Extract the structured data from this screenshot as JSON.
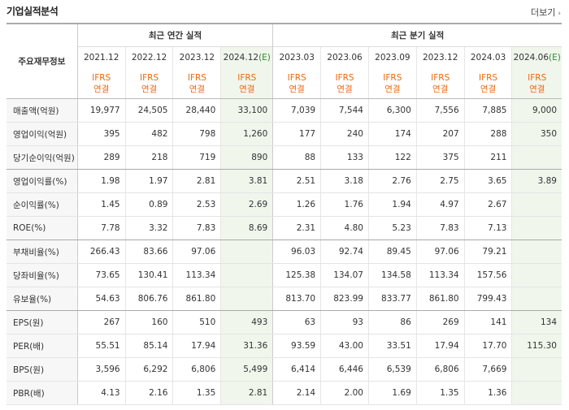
{
  "header": {
    "title": "기업실적분석",
    "more_label": "더보기",
    "more_arrow": "›"
  },
  "table": {
    "metric_header": "주요재무정보",
    "group_annual": "최근 연간 실적",
    "group_quarter": "최근 분기 실적",
    "periods": [
      "2021.12",
      "2022.12",
      "2023.12",
      "2024.12",
      "2023.03",
      "2023.06",
      "2023.09",
      "2023.12",
      "2024.03",
      "2024.06"
    ],
    "estimate_marker": "(E)",
    "basis_line1": "IFRS",
    "basis_line2": "연결",
    "rows": [
      {
        "label": "매출액(억원)",
        "values": [
          "19,977",
          "24,505",
          "28,440",
          "33,100",
          "7,039",
          "7,544",
          "6,300",
          "7,556",
          "7,885",
          "9,000"
        ]
      },
      {
        "label": "영업이익(억원)",
        "values": [
          "395",
          "482",
          "798",
          "1,260",
          "177",
          "240",
          "174",
          "207",
          "288",
          "350"
        ]
      },
      {
        "label": "당기순이익(억원)",
        "values": [
          "289",
          "218",
          "719",
          "890",
          "88",
          "133",
          "122",
          "375",
          "211",
          ""
        ]
      },
      {
        "label": "영업이익률(%)",
        "values": [
          "1.98",
          "1.97",
          "2.81",
          "3.81",
          "2.51",
          "3.18",
          "2.76",
          "2.75",
          "3.65",
          "3.89"
        ]
      },
      {
        "label": "순이익률(%)",
        "values": [
          "1.45",
          "0.89",
          "2.53",
          "2.69",
          "1.26",
          "1.76",
          "1.94",
          "4.97",
          "2.67",
          ""
        ]
      },
      {
        "label": "ROE(%)",
        "values": [
          "7.78",
          "3.32",
          "7.83",
          "8.69",
          "2.31",
          "4.80",
          "5.23",
          "7.83",
          "7.13",
          ""
        ]
      },
      {
        "label": "부채비율(%)",
        "values": [
          "266.43",
          "83.66",
          "97.06",
          "",
          "96.03",
          "92.74",
          "89.45",
          "97.06",
          "79.21",
          ""
        ]
      },
      {
        "label": "당좌비율(%)",
        "values": [
          "73.65",
          "130.41",
          "113.34",
          "",
          "125.38",
          "134.07",
          "134.58",
          "113.34",
          "157.56",
          ""
        ]
      },
      {
        "label": "유보율(%)",
        "values": [
          "54.63",
          "806.76",
          "861.80",
          "",
          "813.70",
          "823.99",
          "833.77",
          "861.80",
          "799.43",
          ""
        ]
      },
      {
        "label": "EPS(원)",
        "values": [
          "267",
          "160",
          "510",
          "493",
          "63",
          "93",
          "86",
          "269",
          "141",
          "134"
        ]
      },
      {
        "label": "PER(배)",
        "values": [
          "55.51",
          "85.14",
          "17.94",
          "31.36",
          "93.59",
          "43.00",
          "33.51",
          "17.94",
          "17.70",
          "115.30"
        ]
      },
      {
        "label": "BPS(원)",
        "values": [
          "3,596",
          "6,292",
          "6,806",
          "5,499",
          "6,414",
          "6,446",
          "6,539",
          "6,806",
          "7,669",
          ""
        ]
      },
      {
        "label": "PBR(배)",
        "values": [
          "4.13",
          "2.16",
          "1.35",
          "2.81",
          "2.14",
          "2.00",
          "1.69",
          "1.35",
          "1.36",
          ""
        ]
      }
    ]
  },
  "colors": {
    "basis": "#e86a14",
    "estimate_bg": "#f0f6ec",
    "estimate_marker": "#2e8b2e"
  }
}
